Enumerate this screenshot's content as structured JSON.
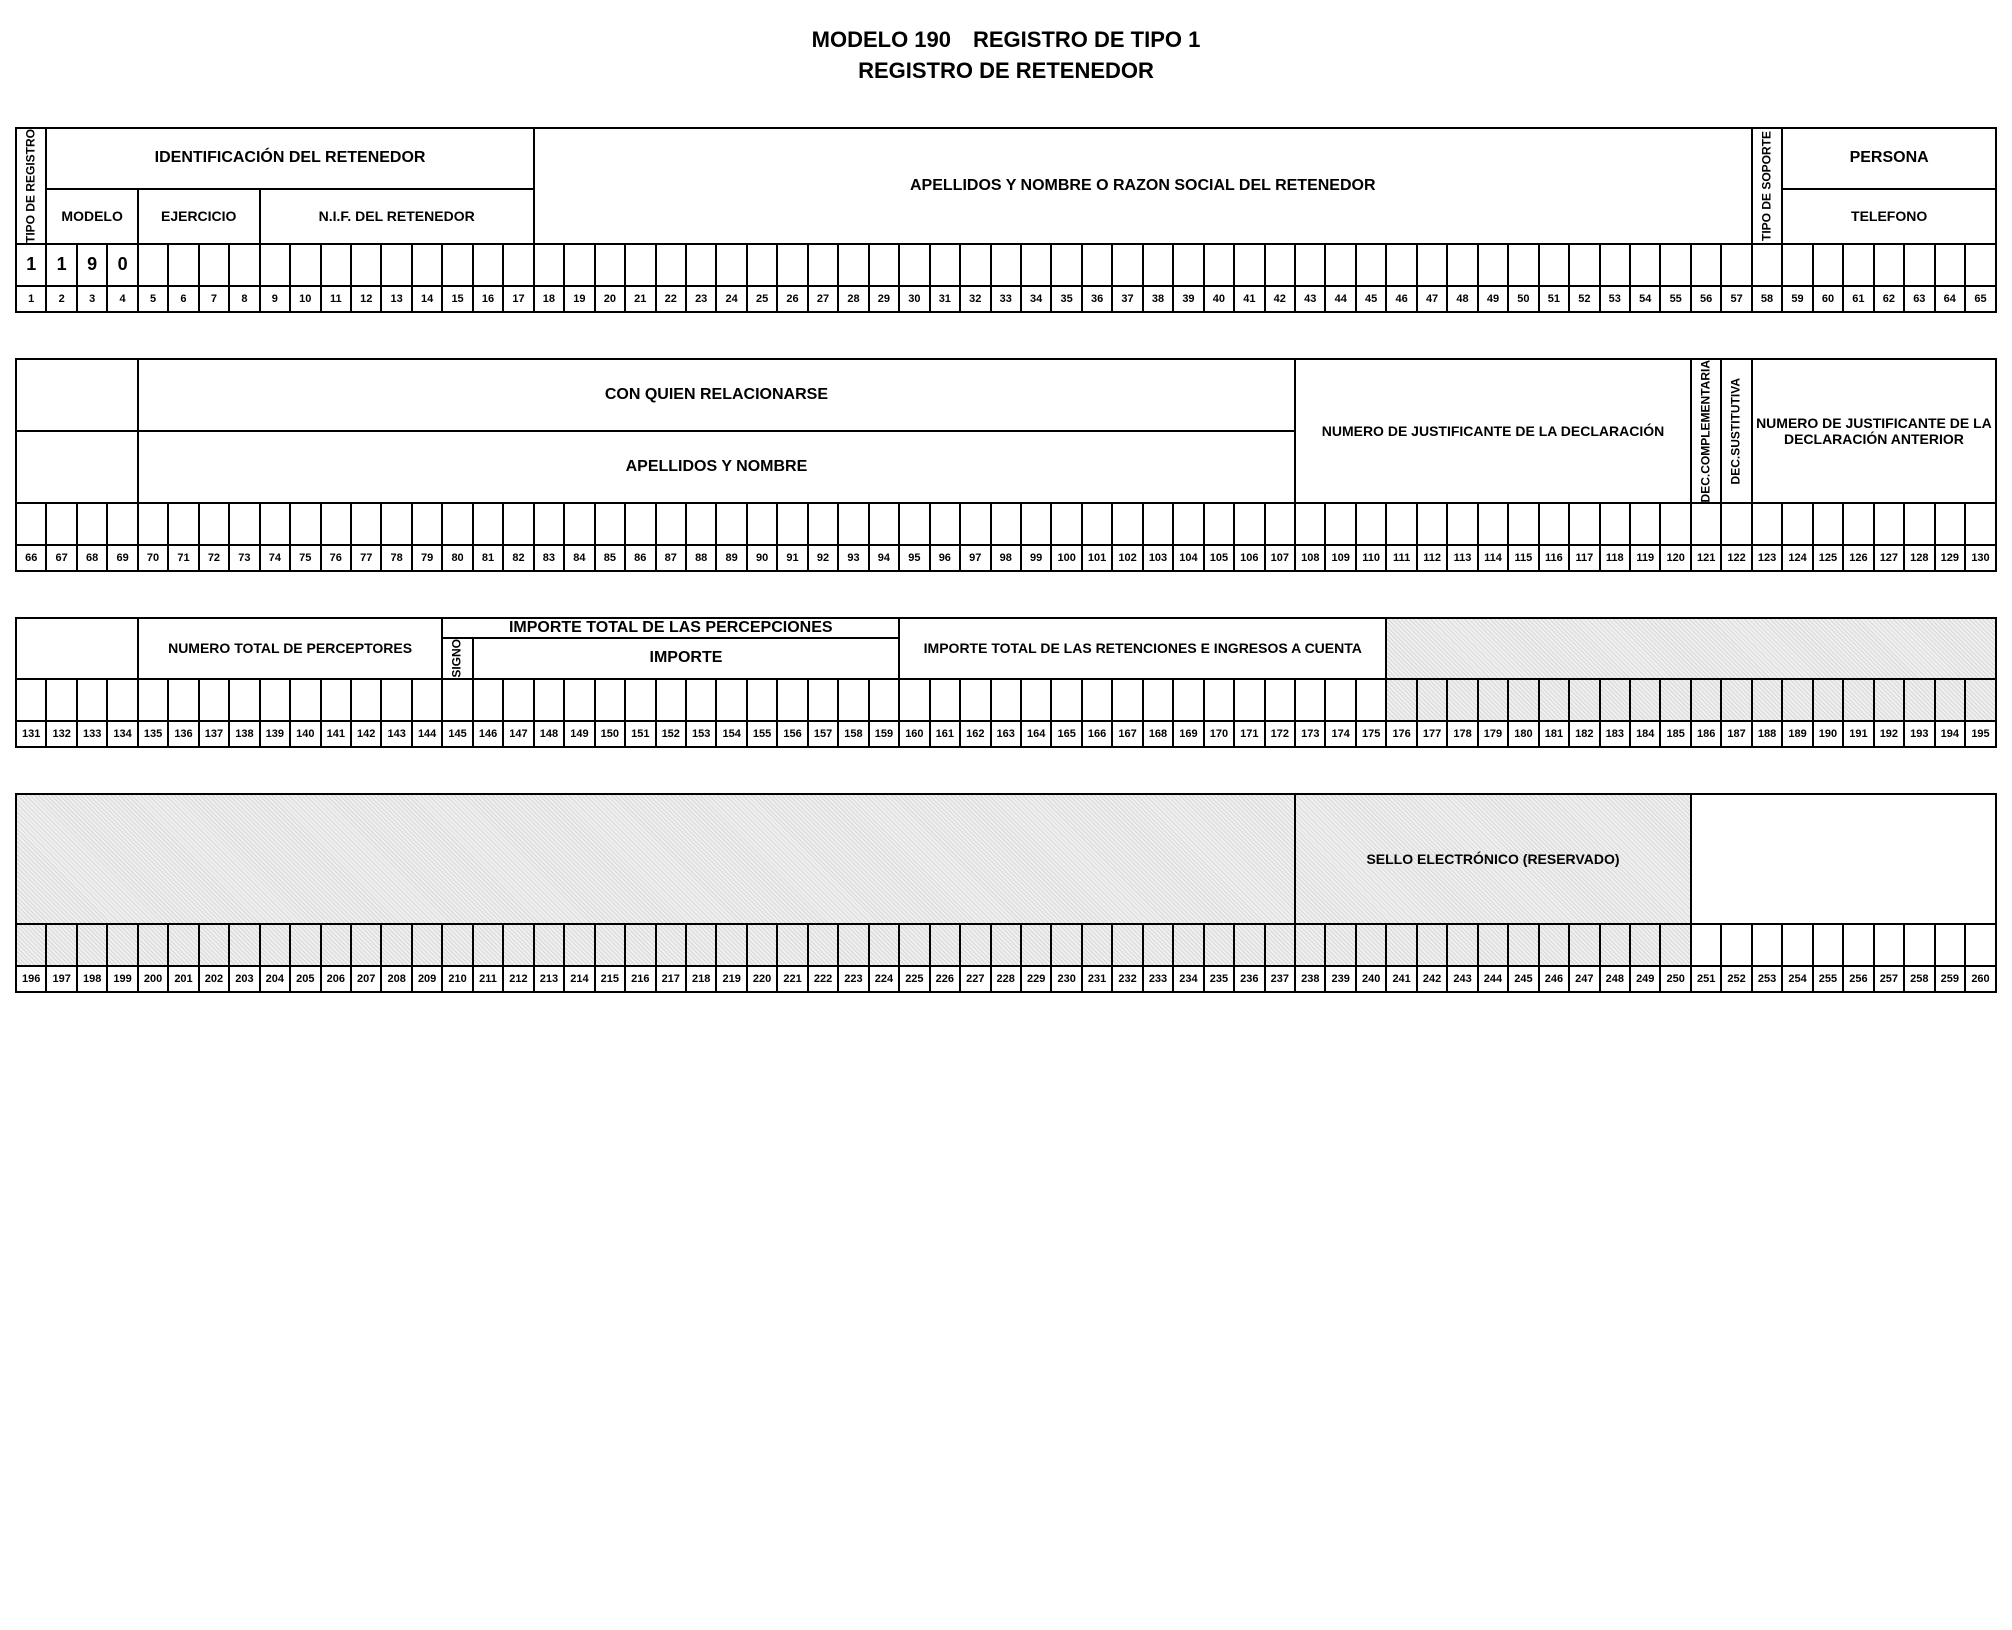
{
  "title": {
    "line1": "MODELO 190 REGISTRO DE TIPO 1",
    "line2": "REGISTRO DE RETENEDOR"
  },
  "section1": {
    "headers": {
      "tipoRegistro": "TIPO DE REGISTRO",
      "identificacion": "IDENTIFICACIÓN DEL RETENEDOR",
      "modelo": "MODELO",
      "ejercicio": "EJERCICIO",
      "nif": "N.I.F. DEL RETENEDOR",
      "apellidos": "APELLIDOS Y NOMBRE O RAZON SOCIAL DEL RETENEDOR",
      "tipoSoporte": "TIPO DE SOPORTE",
      "persona": "PERSONA",
      "telefono": "TELEFONO"
    },
    "dataRow": {
      "tipoReg": "1",
      "modelo": [
        "1",
        "9",
        "0"
      ]
    },
    "positions": {
      "start": 1,
      "end": 65,
      "boldEvery": 10
    }
  },
  "section2": {
    "headers": {
      "conQuien": "CON QUIEN RELACIONARSE",
      "apellidos": "APELLIDOS Y NOMBRE",
      "numJustif": "NUMERO DE JUSTIFICANTE DE LA DECLARACIÓN",
      "decComp": "DEC.COMPLEMENTARIA",
      "decSust": "DEC.SUSTITUTIVA",
      "numJustifAnt": "NUMERO DE JUSTIFICANTE DE LA DECLARACIÓN ANTERIOR"
    },
    "positions": {
      "start": 66,
      "end": 130,
      "boldEvery": 10
    }
  },
  "section3": {
    "headers": {
      "numPerceptores": "NUMERO TOTAL DE PERCEPTORES",
      "importeTotal": "IMPORTE TOTAL DE LAS PERCEPCIONES",
      "signo": "SIGNO",
      "importe": "IMPORTE",
      "retenciones": "IMPORTE TOTAL DE LAS RETENCIONES E INGRESOS A CUENTA"
    },
    "positions": {
      "start": 131,
      "end": 195,
      "boldEvery": 10
    }
  },
  "section4": {
    "headers": {
      "sello": "SELLO ELECTRÓNICO (RESERVADO)"
    },
    "positions": {
      "start": 196,
      "end": 260,
      "boldEvery": 10
    }
  },
  "style": {
    "cellBorder": "#000000",
    "background": "#ffffff",
    "shadedA": "#d8d8d8",
    "shadedB": "#f0f0f0",
    "titleFontSize": 22,
    "headerFontSize": 16,
    "smallHeaderFontSize": 14,
    "vertFontSize": 12,
    "numFontSize": 11
  }
}
